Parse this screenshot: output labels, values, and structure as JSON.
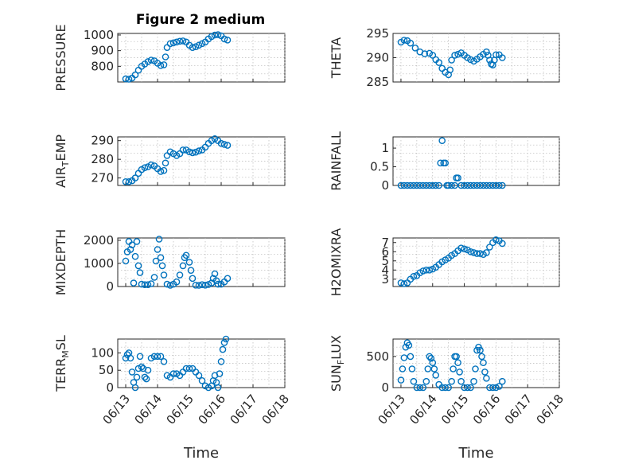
{
  "title": "Figure 2 medium",
  "colors": {
    "marker": "#0072BD",
    "axis": "#262626"
  },
  "chart_data": [
    {
      "type": "scatter",
      "ylabel": "PRESSURE",
      "xlabel": "",
      "x_date_ticks": [],
      "x_range": [
        "06/13",
        "06/18"
      ],
      "ylim": [
        700,
        1010
      ],
      "yticks": [
        800,
        900,
        1000
      ],
      "grid": true,
      "points": [
        [
          0.0,
          720
        ],
        [
          0.1,
          718
        ],
        [
          0.2,
          725
        ],
        [
          0.3,
          745
        ],
        [
          0.4,
          775
        ],
        [
          0.5,
          800
        ],
        [
          0.6,
          815
        ],
        [
          0.7,
          830
        ],
        [
          0.8,
          840
        ],
        [
          0.9,
          835
        ],
        [
          1.0,
          820
        ],
        [
          1.1,
          805
        ],
        [
          1.2,
          810
        ],
        [
          1.25,
          860
        ],
        [
          1.3,
          920
        ],
        [
          1.4,
          945
        ],
        [
          1.5,
          950
        ],
        [
          1.6,
          955
        ],
        [
          1.7,
          960
        ],
        [
          1.8,
          962
        ],
        [
          1.9,
          955
        ],
        [
          2.0,
          935
        ],
        [
          2.1,
          920
        ],
        [
          2.2,
          925
        ],
        [
          2.3,
          935
        ],
        [
          2.4,
          945
        ],
        [
          2.5,
          955
        ],
        [
          2.6,
          975
        ],
        [
          2.7,
          990
        ],
        [
          2.8,
          1000
        ],
        [
          2.9,
          1002
        ],
        [
          3.0,
          995
        ],
        [
          3.1,
          975
        ],
        [
          3.2,
          968
        ]
      ]
    },
    {
      "type": "scatter",
      "ylabel": "THETA",
      "xlabel": "",
      "x_date_ticks": [],
      "x_range": [
        "06/13",
        "06/18"
      ],
      "ylim": [
        285,
        295
      ],
      "yticks": [
        285,
        290,
        295
      ],
      "grid": true,
      "points": [
        [
          0.0,
          293.2
        ],
        [
          0.1,
          293.6
        ],
        [
          0.2,
          293.5
        ],
        [
          0.3,
          293.0
        ],
        [
          0.45,
          292.0
        ],
        [
          0.6,
          291.2
        ],
        [
          0.75,
          290.8
        ],
        [
          0.9,
          290.9
        ],
        [
          1.0,
          290.5
        ],
        [
          1.1,
          289.6
        ],
        [
          1.2,
          289.0
        ],
        [
          1.3,
          287.8
        ],
        [
          1.4,
          287.0
        ],
        [
          1.5,
          286.5
        ],
        [
          1.55,
          287.5
        ],
        [
          1.6,
          289.5
        ],
        [
          1.7,
          290.5
        ],
        [
          1.8,
          290.7
        ],
        [
          1.9,
          291.0
        ],
        [
          2.0,
          290.5
        ],
        [
          2.1,
          290.0
        ],
        [
          2.2,
          289.6
        ],
        [
          2.3,
          289.3
        ],
        [
          2.4,
          289.7
        ],
        [
          2.5,
          290.2
        ],
        [
          2.6,
          290.7
        ],
        [
          2.7,
          291.2
        ],
        [
          2.75,
          290.5
        ],
        [
          2.8,
          289.5
        ],
        [
          2.85,
          288.7
        ],
        [
          2.9,
          288.5
        ],
        [
          2.95,
          289.5
        ],
        [
          3.0,
          290.6
        ],
        [
          3.1,
          290.6
        ],
        [
          3.2,
          290.0
        ]
      ]
    },
    {
      "type": "scatter",
      "ylabel": "AIR_TEMP",
      "xlabel": "",
      "x_date_ticks": [],
      "x_range": [
        "06/13",
        "06/18"
      ],
      "ylim": [
        266,
        292
      ],
      "yticks": [
        270,
        280,
        290
      ],
      "grid": true,
      "points": [
        [
          0.0,
          268
        ],
        [
          0.1,
          268
        ],
        [
          0.2,
          268.5
        ],
        [
          0.3,
          270
        ],
        [
          0.4,
          272.5
        ],
        [
          0.5,
          274.5
        ],
        [
          0.6,
          275.5
        ],
        [
          0.7,
          276
        ],
        [
          0.8,
          277
        ],
        [
          0.9,
          276.5
        ],
        [
          1.0,
          275
        ],
        [
          1.1,
          273.5
        ],
        [
          1.2,
          274
        ],
        [
          1.25,
          278
        ],
        [
          1.3,
          282
        ],
        [
          1.4,
          284
        ],
        [
          1.5,
          283
        ],
        [
          1.6,
          282
        ],
        [
          1.7,
          283
        ],
        [
          1.8,
          285
        ],
        [
          1.9,
          285
        ],
        [
          2.0,
          284
        ],
        [
          2.1,
          283.5
        ],
        [
          2.2,
          283.8
        ],
        [
          2.3,
          284.5
        ],
        [
          2.4,
          285
        ],
        [
          2.5,
          286.5
        ],
        [
          2.6,
          288.5
        ],
        [
          2.7,
          290
        ],
        [
          2.8,
          291
        ],
        [
          2.9,
          290
        ],
        [
          3.0,
          288.5
        ],
        [
          3.1,
          288
        ],
        [
          3.2,
          287.5
        ]
      ]
    },
    {
      "type": "scatter",
      "ylabel": "RAINFALL",
      "xlabel": "",
      "x_date_ticks": [],
      "x_range": [
        "06/13",
        "06/18"
      ],
      "ylim": [
        0,
        1.3
      ],
      "yticks": [
        0,
        0.5,
        1
      ],
      "grid": true,
      "points": [
        [
          0.0,
          0
        ],
        [
          0.1,
          0
        ],
        [
          0.2,
          0
        ],
        [
          0.3,
          0
        ],
        [
          0.4,
          0
        ],
        [
          0.5,
          0
        ],
        [
          0.6,
          0
        ],
        [
          0.7,
          0
        ],
        [
          0.8,
          0
        ],
        [
          0.9,
          0
        ],
        [
          1.0,
          0
        ],
        [
          1.1,
          0
        ],
        [
          1.2,
          0
        ],
        [
          1.25,
          0.6
        ],
        [
          1.3,
          1.2
        ],
        [
          1.35,
          0.6
        ],
        [
          1.4,
          0.6
        ],
        [
          1.45,
          0
        ],
        [
          1.5,
          0
        ],
        [
          1.6,
          0
        ],
        [
          1.7,
          0
        ],
        [
          1.75,
          0.2
        ],
        [
          1.8,
          0.2
        ],
        [
          1.9,
          0
        ],
        [
          2.0,
          0
        ],
        [
          2.1,
          0
        ],
        [
          2.2,
          0
        ],
        [
          2.3,
          0
        ],
        [
          2.4,
          0
        ],
        [
          2.5,
          0
        ],
        [
          2.6,
          0
        ],
        [
          2.7,
          0
        ],
        [
          2.8,
          0
        ],
        [
          2.9,
          0
        ],
        [
          3.0,
          0
        ],
        [
          3.1,
          0
        ],
        [
          3.2,
          0
        ]
      ]
    },
    {
      "type": "scatter",
      "ylabel": "MIXDEPTH",
      "xlabel": "",
      "x_date_ticks": [],
      "x_range": [
        "06/13",
        "06/18"
      ],
      "ylim": [
        0,
        2100
      ],
      "yticks": [
        0,
        1000,
        2000
      ],
      "grid": true,
      "points": [
        [
          0.0,
          1100
        ],
        [
          0.05,
          1500
        ],
        [
          0.1,
          1950
        ],
        [
          0.15,
          1600
        ],
        [
          0.2,
          1800
        ],
        [
          0.25,
          150
        ],
        [
          0.3,
          1300
        ],
        [
          0.35,
          1950
        ],
        [
          0.4,
          900
        ],
        [
          0.45,
          600
        ],
        [
          0.5,
          100
        ],
        [
          0.6,
          80
        ],
        [
          0.7,
          80
        ],
        [
          0.8,
          120
        ],
        [
          0.9,
          400
        ],
        [
          0.95,
          1100
        ],
        [
          1.0,
          1600
        ],
        [
          1.05,
          2050
        ],
        [
          1.1,
          1250
        ],
        [
          1.15,
          900
        ],
        [
          1.2,
          500
        ],
        [
          1.3,
          100
        ],
        [
          1.4,
          50
        ],
        [
          1.5,
          100
        ],
        [
          1.6,
          200
        ],
        [
          1.7,
          500
        ],
        [
          1.8,
          900
        ],
        [
          1.85,
          1250
        ],
        [
          1.9,
          1350
        ],
        [
          2.0,
          1050
        ],
        [
          2.05,
          700
        ],
        [
          2.1,
          350
        ],
        [
          2.2,
          60
        ],
        [
          2.3,
          50
        ],
        [
          2.4,
          80
        ],
        [
          2.5,
          60
        ],
        [
          2.6,
          90
        ],
        [
          2.7,
          150
        ],
        [
          2.75,
          350
        ],
        [
          2.8,
          550
        ],
        [
          2.85,
          250
        ],
        [
          2.9,
          100
        ],
        [
          3.0,
          100
        ],
        [
          3.1,
          200
        ],
        [
          3.2,
          350
        ]
      ]
    },
    {
      "type": "scatter",
      "ylabel": "H2OMIXRA",
      "xlabel": "",
      "x_date_ticks": [],
      "x_range": [
        "06/13",
        "06/18"
      ],
      "ylim": [
        2.2,
        7.5
      ],
      "yticks": [
        3,
        4,
        5,
        6,
        7
      ],
      "grid": true,
      "points": [
        [
          0.0,
          2.6
        ],
        [
          0.1,
          2.5
        ],
        [
          0.2,
          2.6
        ],
        [
          0.3,
          3.0
        ],
        [
          0.4,
          3.3
        ],
        [
          0.5,
          3.4
        ],
        [
          0.6,
          3.7
        ],
        [
          0.7,
          3.9
        ],
        [
          0.8,
          4.0
        ],
        [
          0.9,
          4.0
        ],
        [
          1.0,
          4.1
        ],
        [
          1.1,
          4.3
        ],
        [
          1.2,
          4.6
        ],
        [
          1.3,
          4.9
        ],
        [
          1.4,
          5.1
        ],
        [
          1.5,
          5.3
        ],
        [
          1.6,
          5.6
        ],
        [
          1.7,
          5.8
        ],
        [
          1.8,
          6.1
        ],
        [
          1.9,
          6.4
        ],
        [
          2.0,
          6.3
        ],
        [
          2.1,
          6.2
        ],
        [
          2.2,
          6.0
        ],
        [
          2.3,
          5.9
        ],
        [
          2.4,
          5.8
        ],
        [
          2.5,
          5.8
        ],
        [
          2.6,
          5.7
        ],
        [
          2.7,
          5.9
        ],
        [
          2.8,
          6.5
        ],
        [
          2.9,
          7.0
        ],
        [
          3.0,
          7.3
        ],
        [
          3.1,
          7.2
        ],
        [
          3.2,
          6.9
        ]
      ]
    },
    {
      "type": "scatter",
      "ylabel": "TERR_MSL",
      "xlabel": "Time",
      "x_range": [
        "06/13",
        "06/18"
      ],
      "x_date_ticks": [
        "06/13",
        "06/14",
        "06/15",
        "06/16",
        "06/17",
        "06/18"
      ],
      "ylim": [
        0,
        140
      ],
      "yticks": [
        0,
        50,
        100
      ],
      "grid": true,
      "points": [
        [
          0.0,
          85
        ],
        [
          0.05,
          95
        ],
        [
          0.1,
          100
        ],
        [
          0.15,
          85
        ],
        [
          0.2,
          45
        ],
        [
          0.25,
          15
        ],
        [
          0.3,
          0
        ],
        [
          0.35,
          30
        ],
        [
          0.4,
          55
        ],
        [
          0.45,
          90
        ],
        [
          0.5,
          60
        ],
        [
          0.55,
          55
        ],
        [
          0.6,
          30
        ],
        [
          0.65,
          25
        ],
        [
          0.7,
          50
        ],
        [
          0.8,
          85
        ],
        [
          0.9,
          90
        ],
        [
          1.0,
          90
        ],
        [
          1.1,
          90
        ],
        [
          1.2,
          75
        ],
        [
          1.3,
          35
        ],
        [
          1.4,
          30
        ],
        [
          1.5,
          40
        ],
        [
          1.6,
          40
        ],
        [
          1.7,
          35
        ],
        [
          1.8,
          45
        ],
        [
          1.9,
          55
        ],
        [
          2.0,
          55
        ],
        [
          2.1,
          55
        ],
        [
          2.2,
          45
        ],
        [
          2.3,
          35
        ],
        [
          2.4,
          20
        ],
        [
          2.5,
          5
        ],
        [
          2.6,
          0
        ],
        [
          2.7,
          5
        ],
        [
          2.75,
          20
        ],
        [
          2.8,
          35
        ],
        [
          2.85,
          15
        ],
        [
          2.9,
          0
        ],
        [
          2.95,
          40
        ],
        [
          3.0,
          75
        ],
        [
          3.05,
          110
        ],
        [
          3.1,
          130
        ],
        [
          3.15,
          140
        ]
      ]
    },
    {
      "type": "scatter",
      "ylabel": "SUN_FLUX",
      "xlabel": "Time",
      "x_range": [
        "06/13",
        "06/18"
      ],
      "x_date_ticks": [
        "06/13",
        "06/14",
        "06/15",
        "06/16",
        "06/17",
        "06/18"
      ],
      "ylim": [
        0,
        780
      ],
      "yticks": [
        0,
        500
      ],
      "grid": true,
      "points": [
        [
          0.0,
          120
        ],
        [
          0.05,
          300
        ],
        [
          0.1,
          480
        ],
        [
          0.15,
          650
        ],
        [
          0.2,
          720
        ],
        [
          0.25,
          680
        ],
        [
          0.3,
          500
        ],
        [
          0.35,
          300
        ],
        [
          0.4,
          100
        ],
        [
          0.5,
          0
        ],
        [
          0.6,
          0
        ],
        [
          0.7,
          0
        ],
        [
          0.8,
          100
        ],
        [
          0.85,
          300
        ],
        [
          0.9,
          500
        ],
        [
          0.95,
          470
        ],
        [
          1.0,
          400
        ],
        [
          1.05,
          300
        ],
        [
          1.1,
          200
        ],
        [
          1.2,
          50
        ],
        [
          1.3,
          0
        ],
        [
          1.4,
          0
        ],
        [
          1.5,
          0
        ],
        [
          1.6,
          100
        ],
        [
          1.65,
          300
        ],
        [
          1.7,
          500
        ],
        [
          1.75,
          500
        ],
        [
          1.8,
          400
        ],
        [
          1.85,
          250
        ],
        [
          1.9,
          100
        ],
        [
          2.0,
          0
        ],
        [
          2.1,
          0
        ],
        [
          2.2,
          0
        ],
        [
          2.3,
          100
        ],
        [
          2.35,
          300
        ],
        [
          2.4,
          600
        ],
        [
          2.45,
          650
        ],
        [
          2.5,
          600
        ],
        [
          2.55,
          500
        ],
        [
          2.6,
          400
        ],
        [
          2.65,
          250
        ],
        [
          2.7,
          150
        ],
        [
          2.8,
          0
        ],
        [
          2.9,
          0
        ],
        [
          3.0,
          0
        ],
        [
          3.1,
          20
        ],
        [
          3.2,
          100
        ]
      ]
    }
  ]
}
